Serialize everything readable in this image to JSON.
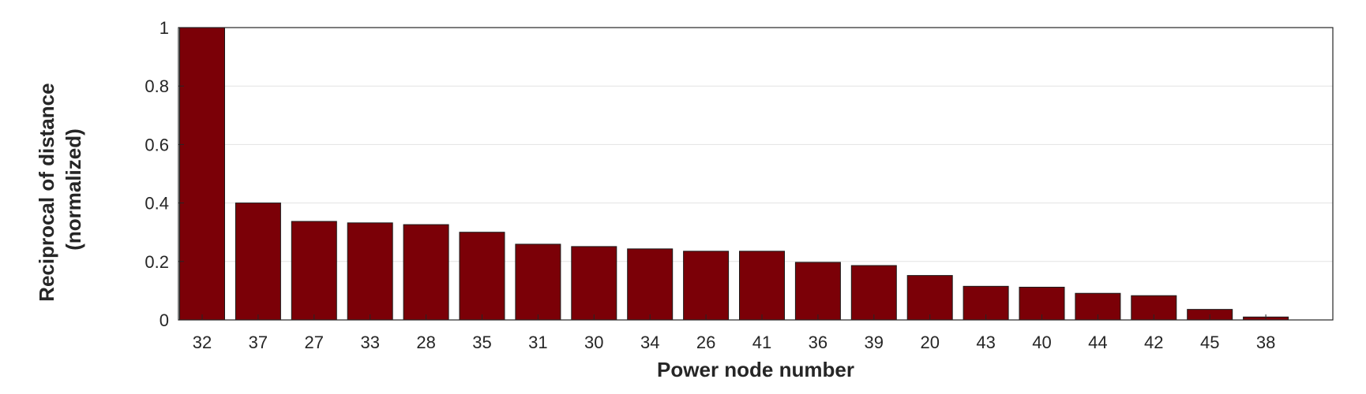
{
  "chart_data": {
    "type": "bar",
    "categories": [
      "32",
      "37",
      "27",
      "33",
      "28",
      "35",
      "31",
      "30",
      "34",
      "26",
      "41",
      "36",
      "39",
      "20",
      "43",
      "40",
      "44",
      "42",
      "45",
      "38"
    ],
    "values": [
      1.0,
      0.4,
      0.337,
      0.332,
      0.326,
      0.3,
      0.259,
      0.251,
      0.243,
      0.235,
      0.235,
      0.197,
      0.186,
      0.152,
      0.115,
      0.112,
      0.091,
      0.083,
      0.036,
      0.01
    ],
    "xlabel": "Power node number",
    "ylabel_lines": [
      "Reciprocal of distance",
      "(normalized)"
    ],
    "ylim": [
      0,
      1
    ],
    "yticks": [
      "0",
      "0.2",
      "0.4",
      "0.6",
      "0.8",
      "1"
    ],
    "ytick_values": [
      0,
      0.2,
      0.4,
      0.6,
      0.8,
      1
    ],
    "grid": "horizontal",
    "bar_color": "#7b0007"
  }
}
